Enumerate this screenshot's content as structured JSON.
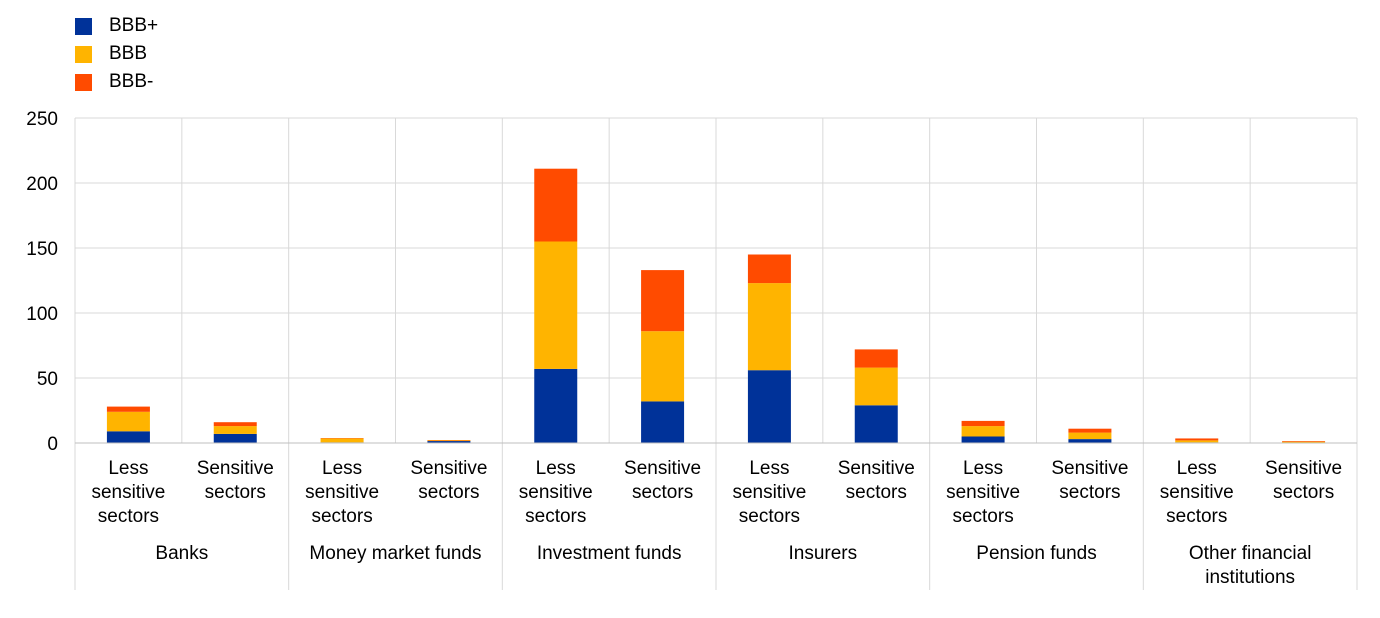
{
  "chart_data": {
    "type": "bar",
    "stacked": true,
    "title": "",
    "xlabel": "",
    "ylabel": "",
    "ylim": [
      0,
      250
    ],
    "yticks": [
      0,
      50,
      100,
      150,
      200,
      250
    ],
    "grid": true,
    "legend_position": "top-left",
    "groups": [
      {
        "label": "Banks",
        "categories": [
          "Less sensitive sectors",
          "Sensitive sectors"
        ]
      },
      {
        "label": "Money market funds",
        "categories": [
          "Less sensitive sectors",
          "Sensitive sectors"
        ]
      },
      {
        "label": "Investment funds",
        "categories": [
          "Less sensitive sectors",
          "Sensitive sectors"
        ]
      },
      {
        "label": "Insurers",
        "categories": [
          "Less sensitive sectors",
          "Sensitive sectors"
        ]
      },
      {
        "label": "Pension funds",
        "categories": [
          "Less sensitive sectors",
          "Sensitive sectors"
        ]
      },
      {
        "label": "Other financial institutions",
        "categories": [
          "Less sensitive sectors",
          "Sensitive sectors"
        ]
      }
    ],
    "series": [
      {
        "name": "BBB+",
        "color": "#003299",
        "values": [
          9,
          7,
          0.5,
          1.5,
          57,
          32,
          56,
          29,
          5,
          3,
          0.5,
          0.3
        ]
      },
      {
        "name": "BBB",
        "color": "#FFB400",
        "values": [
          15,
          6,
          3,
          0.5,
          98,
          54,
          67,
          29,
          8,
          5,
          1.5,
          0.7
        ]
      },
      {
        "name": "BBB-",
        "color": "#FF4B00",
        "values": [
          4,
          3,
          0.3,
          0.3,
          56,
          47,
          22,
          14,
          4,
          3,
          1.5,
          0.5
        ]
      }
    ]
  }
}
